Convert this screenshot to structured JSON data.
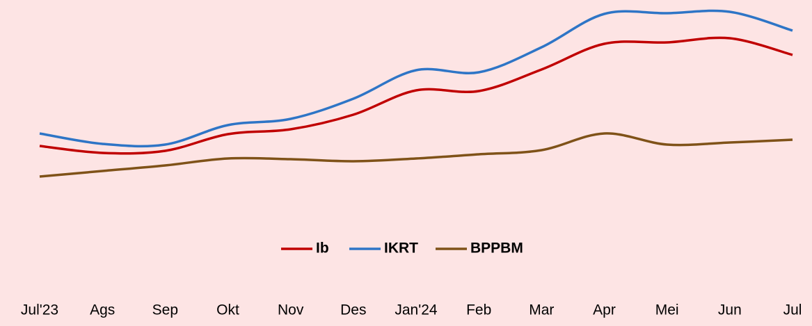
{
  "chart_data": {
    "type": "line",
    "categories": [
      "Jul'23",
      "Ags",
      "Sep",
      "Okt",
      "Nov",
      "Des",
      "Jan'24",
      "Feb",
      "Mar",
      "Apr",
      "Mei",
      "Jun",
      "Jul"
    ],
    "series": [
      {
        "name": "Ib",
        "color": "#c00000",
        "values": [
          90,
          80,
          83,
          107,
          114,
          135,
          170,
          169,
          200,
          237,
          239,
          245,
          221
        ]
      },
      {
        "name": "IKRT",
        "color": "#2e75c6",
        "values": [
          108,
          93,
          92,
          120,
          129,
          158,
          199,
          196,
          232,
          280,
          281,
          283,
          256
        ]
      },
      {
        "name": "BPPBM",
        "color": "#7f5218",
        "values": [
          46,
          54,
          62,
          72,
          71,
          68,
          72,
          78,
          84,
          108,
          92,
          95,
          99
        ]
      }
    ],
    "ylim": [
      0,
      300
    ],
    "legend": "bottom"
  }
}
